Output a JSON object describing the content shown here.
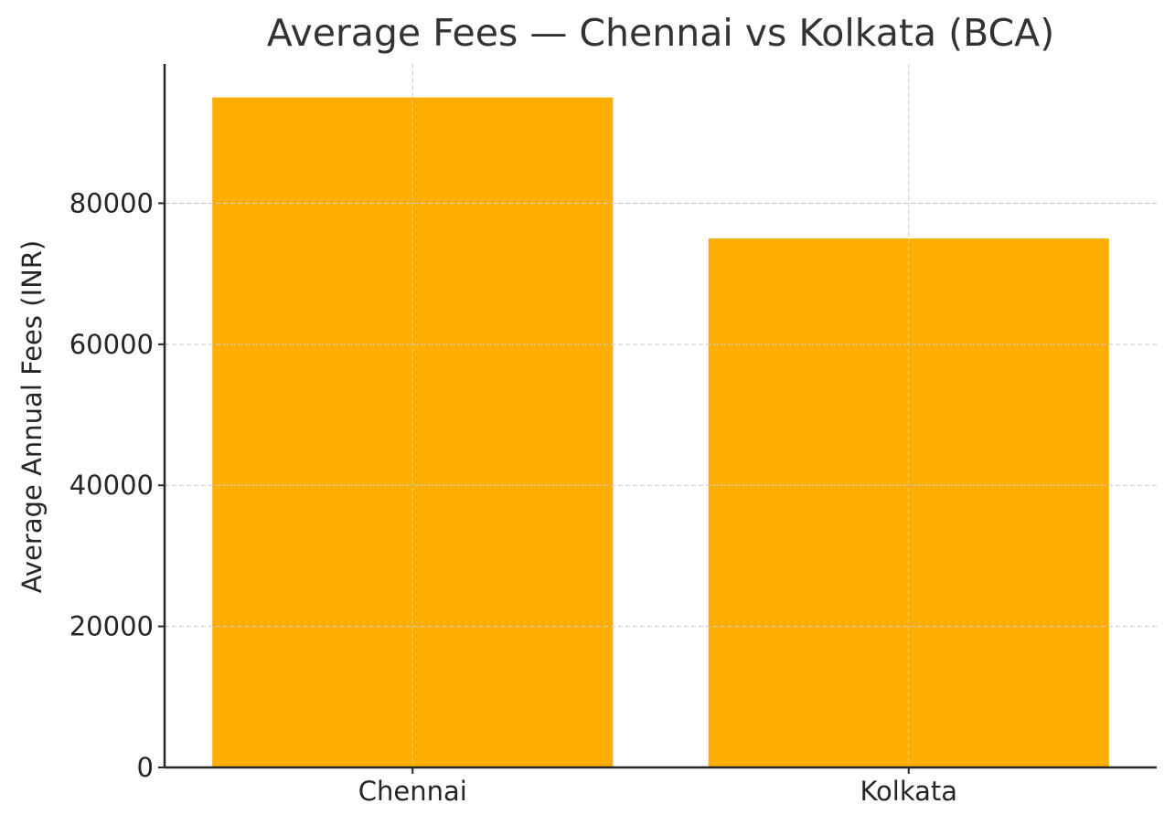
{
  "chart_data": {
    "type": "bar",
    "title": "Average Fees — Chennai vs Kolkata (BCA)",
    "xlabel": "",
    "ylabel": "Average Annual Fees (INR)",
    "categories": [
      "Chennai",
      "Kolkata"
    ],
    "values": [
      95000,
      75000
    ],
    "ylim": [
      0,
      99750
    ],
    "yticks": [
      0,
      20000,
      40000,
      60000,
      80000
    ],
    "grid": true,
    "legend": null,
    "bar_color": "#FFAE00"
  },
  "labels": {
    "title": "Average Fees — Chennai vs Kolkata (BCA)",
    "ylabel": "Average Annual Fees (INR)"
  }
}
